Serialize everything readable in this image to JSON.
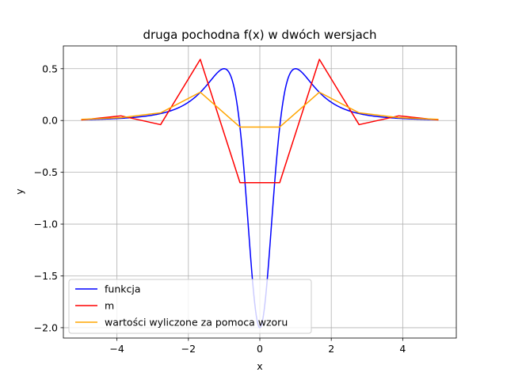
{
  "chart_data": {
    "type": "line",
    "title": "druga pochodna f(x) w dwóch wersjach",
    "xlabel": "x",
    "ylabel": "y",
    "xlim": [
      -5.5,
      5.5
    ],
    "ylim": [
      -2.1,
      0.72
    ],
    "xticks": [
      -4,
      -2,
      0,
      2,
      4
    ],
    "xtick_labels": [
      "−4",
      "−2",
      "0",
      "2",
      "4"
    ],
    "yticks": [
      0.5,
      0.0,
      -0.5,
      -1.0,
      -1.5,
      -2.0
    ],
    "ytick_labels": [
      "0.5",
      "0.0",
      "−0.5",
      "−1.0",
      "−1.5",
      "−2.0"
    ],
    "grid": true,
    "legend_position": "lower-left",
    "series": [
      {
        "name": "funkcja",
        "color": "#0000ff",
        "formula": "(6*x^2 - 2) / (1 + x^2)^3",
        "x_range": [
          -5,
          5
        ]
      },
      {
        "name": "m",
        "color": "#ff0000",
        "x": [
          -5,
          -3.889,
          -2.778,
          -1.667,
          -0.556,
          0.556,
          1.667,
          2.778,
          3.889,
          5
        ],
        "y": [
          0.005,
          0.045,
          -0.04,
          0.59,
          -0.6,
          -0.6,
          0.59,
          -0.04,
          0.045,
          0.005
        ]
      },
      {
        "name": "wartości wyliczone za pomoca wzoru",
        "color": "#ffa500",
        "x": [
          -5,
          -3.889,
          -2.778,
          -1.667,
          -0.556,
          0.556,
          1.667,
          2.778,
          3.889,
          5
        ],
        "y": [
          0.011,
          0.027,
          0.074,
          0.273,
          -0.063,
          -0.063,
          0.273,
          0.074,
          0.027,
          0.011
        ]
      }
    ]
  }
}
